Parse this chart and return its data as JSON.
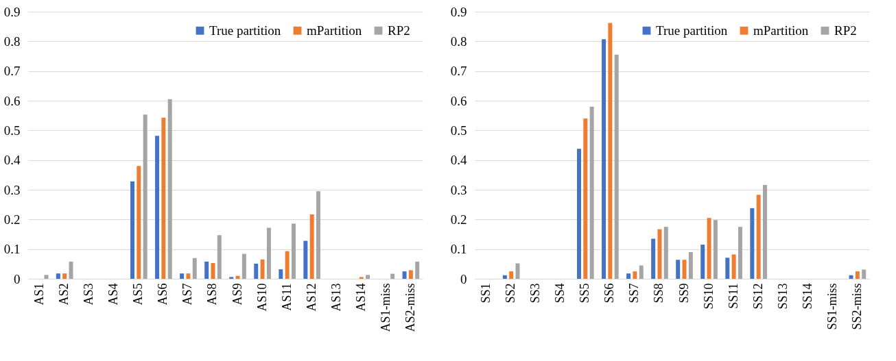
{
  "chart_data": [
    {
      "type": "bar",
      "categories": [
        "AS1",
        "AS2",
        "AS3",
        "AS4",
        "AS5",
        "AS6",
        "AS7",
        "AS8",
        "AS9",
        "AS10",
        "AS11",
        "AS12",
        "AS13",
        "AS14",
        "AS1-miss",
        "AS2-miss"
      ],
      "ylim": [
        0,
        0.9
      ],
      "yticks": [
        0,
        0.1,
        0.2,
        0.3,
        0.4,
        0.5,
        0.6,
        0.7,
        0.8,
        0.9
      ],
      "grid": "y",
      "legend": "top right",
      "series": [
        {
          "name": "True partition",
          "color": "#4472c4",
          "values": [
            0,
            0.018,
            0,
            0,
            0.328,
            0.482,
            0.018,
            0.058,
            0.006,
            0.051,
            0.032,
            0.128,
            0,
            0,
            0,
            0.025
          ]
        },
        {
          "name": "mPartition",
          "color": "#ed7d31",
          "values": [
            0,
            0.018,
            0,
            0,
            0.38,
            0.543,
            0.018,
            0.053,
            0.01,
            0.065,
            0.093,
            0.217,
            0,
            0.006,
            0,
            0.029
          ]
        },
        {
          "name": "RP2",
          "color": "#a5a5a5",
          "values": [
            0.013,
            0.058,
            0,
            0,
            0.553,
            0.605,
            0.07,
            0.147,
            0.084,
            0.172,
            0.186,
            0.295,
            0,
            0.013,
            0.017,
            0.058
          ]
        }
      ]
    },
    {
      "type": "bar",
      "categories": [
        "SS1",
        "SS2",
        "SS3",
        "SS4",
        "SS5",
        "SS6",
        "SS7",
        "SS8",
        "SS9",
        "SS10",
        "SS11",
        "SS12",
        "SS13",
        "SS14",
        "SS1-miss",
        "SS2-miss"
      ],
      "ylim": [
        0,
        0.9
      ],
      "yticks": [
        0,
        0.1,
        0.2,
        0.3,
        0.4,
        0.5,
        0.6,
        0.7,
        0.8,
        0.9
      ],
      "grid": "y",
      "legend": "top right",
      "series": [
        {
          "name": "True partition",
          "color": "#4472c4",
          "values": [
            0,
            0.012,
            0,
            0,
            0.438,
            0.807,
            0.018,
            0.135,
            0.064,
            0.115,
            0.071,
            0.238,
            0,
            0,
            0,
            0.012
          ]
        },
        {
          "name": "mPartition",
          "color": "#ed7d31",
          "values": [
            0,
            0.025,
            0,
            0,
            0.54,
            0.862,
            0.025,
            0.167,
            0.064,
            0.205,
            0.082,
            0.283,
            0,
            0,
            0,
            0.025
          ]
        },
        {
          "name": "RP2",
          "color": "#a5a5a5",
          "values": [
            0,
            0.052,
            0,
            0,
            0.58,
            0.755,
            0.045,
            0.175,
            0.09,
            0.198,
            0.175,
            0.316,
            0,
            0,
            0,
            0.031
          ]
        }
      ]
    }
  ]
}
